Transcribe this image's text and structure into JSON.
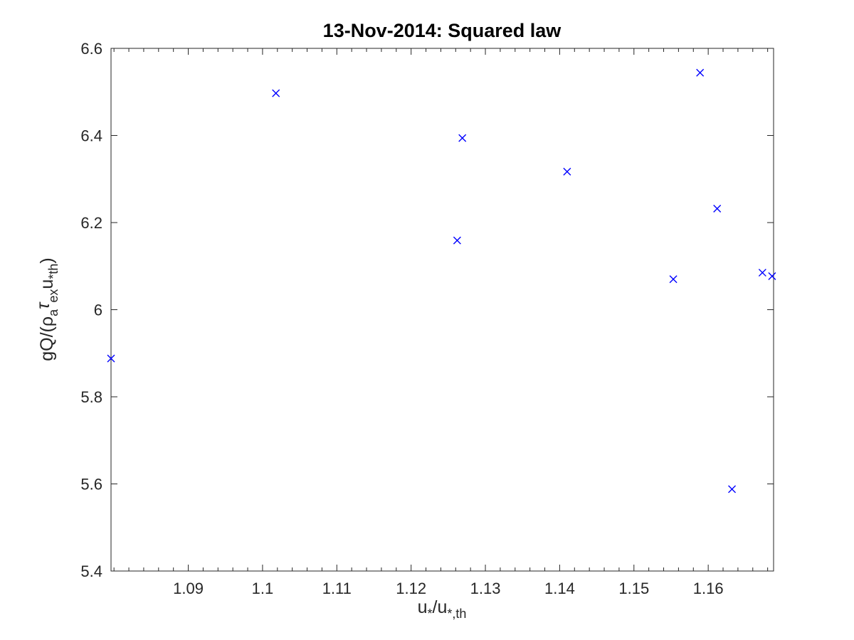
{
  "chart_data": {
    "type": "scatter",
    "title": "13-Nov-2014: Squared law",
    "xlabel": {
      "main": "u",
      "sub1": "*",
      "mid": "/u",
      "sub2": "*,th"
    },
    "ylabel": {
      "pre": "gQ/(",
      "rho": "ρ",
      "sub_a": "a",
      "tau": "τ",
      "sub_ex": "ex",
      "u": "u",
      "sub_th": "*th",
      "post": ")"
    },
    "xlim": [
      1.0796,
      1.1688
    ],
    "ylim": [
      5.4,
      6.6
    ],
    "xticks": [
      1.09,
      1.1,
      1.11,
      1.12,
      1.13,
      1.14,
      1.15,
      1.16
    ],
    "xtick_labels": [
      "1.09",
      "1.1",
      "1.11",
      "1.12",
      "1.13",
      "1.14",
      "1.15",
      "1.16"
    ],
    "yticks": [
      5.4,
      5.6,
      5.8,
      6.0,
      6.2,
      6.4,
      6.6
    ],
    "ytick_labels": [
      "5.4",
      "5.6",
      "5.8",
      "6",
      "6.2",
      "6.4",
      "6.6"
    ],
    "marker": "x",
    "color": "#0000ff",
    "grid": false,
    "x": [
      1.0796,
      1.1018,
      1.1262,
      1.1269,
      1.141,
      1.1553,
      1.1589,
      1.1612,
      1.1632,
      1.1673,
      1.1686
    ],
    "y": [
      5.888,
      6.497,
      6.159,
      6.394,
      6.317,
      6.07,
      6.544,
      6.232,
      5.588,
      6.085,
      6.077
    ]
  }
}
